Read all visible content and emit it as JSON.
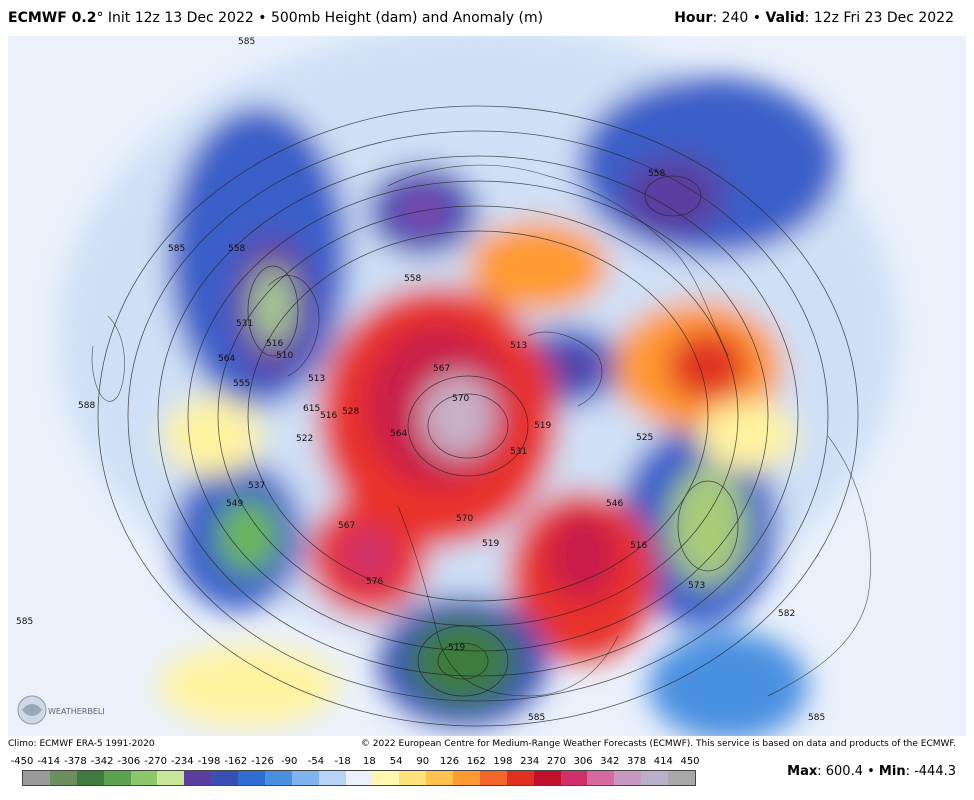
{
  "header": {
    "model": "ECMWF 0.2",
    "degree": "°",
    "init": " Init 12z 13 Dec 2022",
    "sep1": " • ",
    "field": "500mb Height (dam) and Anomaly (m)",
    "hour_label": "Hour",
    "hour_value": ": 240",
    "sep2": " • ",
    "valid_label": "Valid",
    "valid_value": ": 12z Fri 23 Dec 2022"
  },
  "footer": {
    "climo": "Climo: ECMWF ERA-5 1991-2020",
    "copyright": "© 2022 European Centre for Medium-Range Weather Forecasts (ECMWF). This service is based on data and products of the ECMWF.",
    "max_label": "Max",
    "max_value": ": 600.4 • ",
    "min_label": "Min",
    "min_value": ": -444.3"
  },
  "colorbar": {
    "ticks": [
      "-450",
      "-414",
      "-378",
      "-342",
      "-306",
      "-270",
      "-234",
      "-198",
      "-162",
      "-126",
      "-90",
      "-54",
      "-18",
      "18",
      "54",
      "90",
      "126",
      "162",
      "198",
      "234",
      "270",
      "306",
      "342",
      "378",
      "414",
      "450"
    ],
    "colors": [
      "#9a9a9a",
      "#6b8f5e",
      "#3e7b3e",
      "#5aa24e",
      "#8cc86a",
      "#c8e69a",
      "#5a3e9e",
      "#3a4fb5",
      "#2f6ed0",
      "#4a90e0",
      "#7fb4ee",
      "#b7d4f6",
      "#eaf1fb",
      "#fff7b0",
      "#ffe27a",
      "#ffc24e",
      "#ff9a30",
      "#f4662a",
      "#e03020",
      "#c0102c",
      "#d0306a",
      "#d66aa0",
      "#c898c0",
      "#b8b0c8",
      "#a8a8a8"
    ]
  },
  "map": {
    "contour_labels": [
      "585",
      "585",
      "558",
      "531",
      "516",
      "510",
      "564",
      "555",
      "513",
      "615",
      "516",
      "528",
      "522",
      "549",
      "537",
      "567",
      "576",
      "570",
      "567",
      "570",
      "564",
      "558",
      "513",
      "519",
      "531",
      "519",
      "525",
      "546",
      "516",
      "573",
      "582",
      "585",
      "585",
      "519",
      "558",
      "588",
      "585"
    ],
    "logo_text": "WEATHERBELL"
  }
}
